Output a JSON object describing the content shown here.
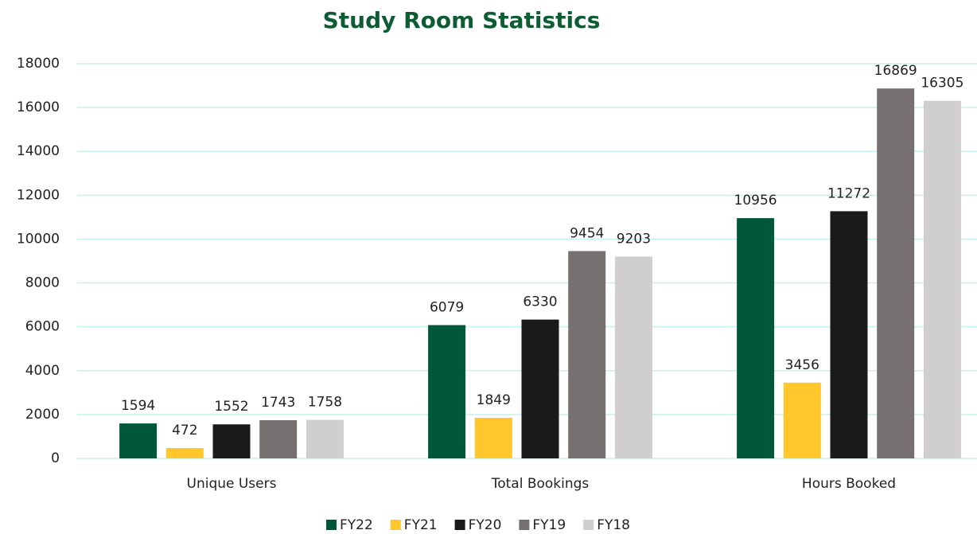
{
  "chart_data": {
    "type": "bar",
    "title": "Study Room Statistics",
    "categories": [
      "Unique Users",
      "Total Bookings",
      "Hours Booked"
    ],
    "series": [
      {
        "name": "FY22",
        "color": "#00573a",
        "values": [
          1594,
          6079,
          10956
        ]
      },
      {
        "name": "FY21",
        "color": "#ffc72c",
        "values": [
          472,
          1849,
          3456
        ]
      },
      {
        "name": "FY20",
        "color": "#1a1a1a",
        "values": [
          1552,
          6330,
          11272
        ]
      },
      {
        "name": "FY19",
        "color": "#767170",
        "values": [
          1743,
          9454,
          16869
        ]
      },
      {
        "name": "FY18",
        "color": "#d0cece",
        "values": [
          1758,
          9203,
          16305
        ]
      }
    ],
    "ylim": [
      0,
      18000
    ],
    "yticks": [
      0,
      2000,
      4000,
      6000,
      8000,
      10000,
      12000,
      14000,
      16000,
      18000
    ],
    "grid": true,
    "legend": "bottom"
  }
}
